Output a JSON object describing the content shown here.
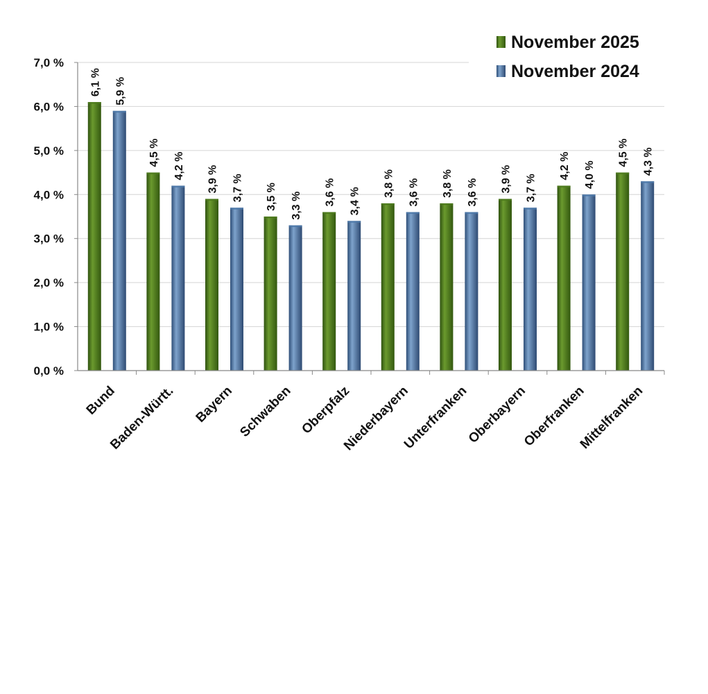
{
  "chart_data": {
    "type": "bar",
    "categories": [
      "Bund",
      "Baden-Württ.",
      "Bayern",
      "Schwaben",
      "Oberpfalz",
      "Niederbayern",
      "Unterfranken",
      "Oberbayern",
      "Oberfranken",
      "Mittelfranken"
    ],
    "series": [
      {
        "name": "November 2025",
        "values": [
          6.1,
          4.5,
          3.9,
          3.5,
          3.6,
          3.8,
          3.8,
          3.9,
          4.2,
          4.5
        ],
        "color": "#4d7a1e"
      },
      {
        "name": "November 2024",
        "values": [
          5.9,
          4.2,
          3.7,
          3.3,
          3.4,
          3.6,
          3.6,
          3.7,
          4.0,
          4.3
        ],
        "color": "#4e79a9"
      }
    ],
    "data_labels": [
      [
        "6,1 %",
        "4,5 %",
        "3,9 %",
        "3,5 %",
        "3,6 %",
        "3,8 %",
        "3,8 %",
        "3,9 %",
        "4,2 %",
        "4,5 %"
      ],
      [
        "5,9 %",
        "4,2 %",
        "3,7 %",
        "3,3 %",
        "3,4 %",
        "3,6 %",
        "3,6 %",
        "3,7 %",
        "4,0 %",
        "4,3 %"
      ]
    ],
    "y_ticks": [
      0,
      1,
      2,
      3,
      4,
      5,
      6,
      7
    ],
    "y_tick_labels": [
      "0,0 %",
      "1,0 %",
      "2,0 %",
      "3,0 %",
      "4,0 %",
      "5,0 %",
      "6,0 %",
      "7,0 %"
    ],
    "ylim": [
      0,
      7
    ],
    "grid": true,
    "legend_position": "top-right",
    "title": "",
    "xlabel": "",
    "ylabel": ""
  }
}
